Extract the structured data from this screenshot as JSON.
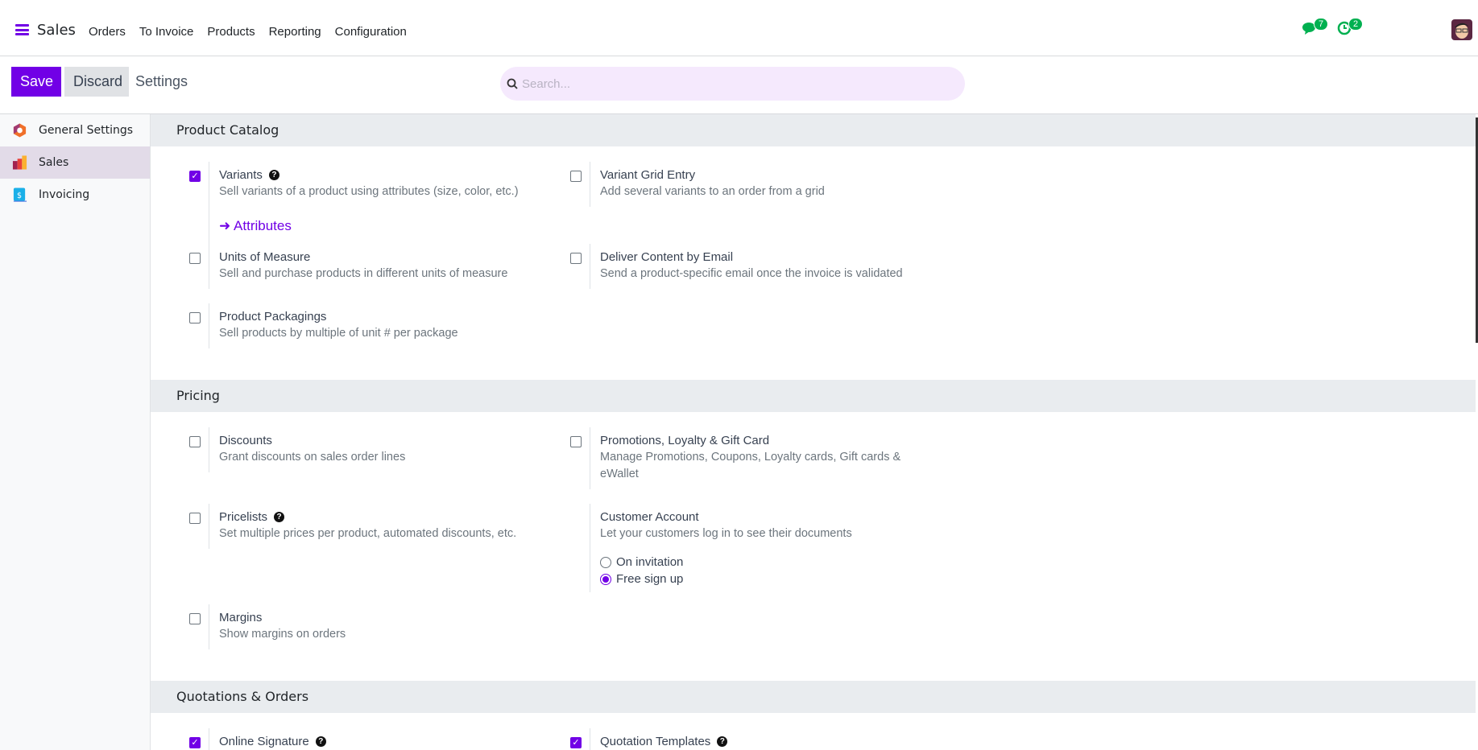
{
  "app": {
    "name": "Sales",
    "menu": [
      "Orders",
      "To Invoice",
      "Products",
      "Reporting",
      "Configuration"
    ],
    "messages_count": "7",
    "activities_count": "2"
  },
  "control_panel": {
    "save": "Save",
    "discard": "Discard",
    "title": "Settings",
    "search_placeholder": "Search..."
  },
  "sidebar": {
    "items": [
      {
        "label": "General Settings"
      },
      {
        "label": "Sales",
        "active": true
      },
      {
        "label": "Invoicing"
      }
    ]
  },
  "accent": "#7100e6",
  "sections": {
    "catalog": {
      "title": "Product Catalog",
      "settings": [
        {
          "title": "Variants",
          "desc": "Sell variants of a product using attributes (size, color, etc.)",
          "checked": true,
          "link": "Attributes"
        },
        {
          "title": "Variant Grid Entry",
          "desc": "Add several variants to an order from a grid",
          "checked": false
        },
        {
          "title": "Units of Measure",
          "desc": "Sell and purchase products in different units of measure",
          "checked": false
        },
        {
          "title": "Deliver Content by Email",
          "desc": "Send a product-specific email once the invoice is validated",
          "checked": false
        },
        {
          "title": "Product Packagings",
          "desc": "Sell products by multiple of unit # per package",
          "checked": false
        }
      ]
    },
    "pricing": {
      "title": "Pricing",
      "settings": [
        {
          "title": "Discounts",
          "desc": "Grant discounts on sales order lines",
          "checked": false
        },
        {
          "title": "Promotions, Loyalty & Gift Card",
          "desc": "Manage Promotions, Coupons, Loyalty cards, Gift cards & eWallet",
          "checked": false
        },
        {
          "title": "Pricelists",
          "desc": "Set multiple prices per product, automated discounts, etc.",
          "checked": false
        },
        {
          "title": "Customer Account",
          "desc": "Let your customers log in to see their documents",
          "options": [
            "On invitation",
            "Free sign up"
          ],
          "selected": "Free sign up"
        },
        {
          "title": "Margins",
          "desc": "Show margins on orders",
          "checked": false
        }
      ]
    },
    "quotations": {
      "title": "Quotations & Orders",
      "settings": [
        {
          "title": "Online Signature",
          "checked": true
        },
        {
          "title": "Quotation Templates",
          "checked": true
        }
      ]
    }
  }
}
